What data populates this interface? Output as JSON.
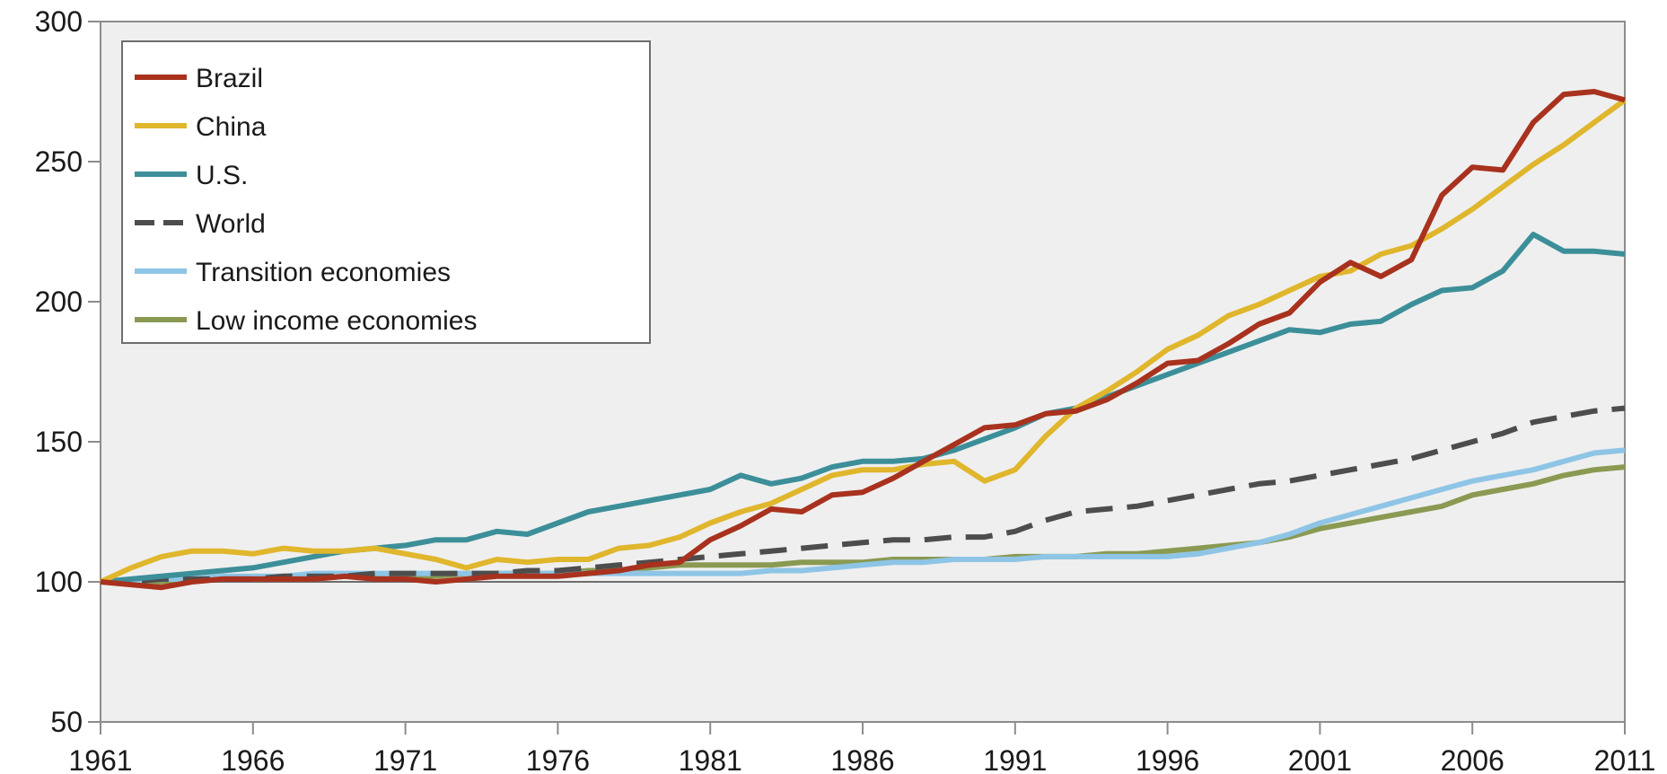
{
  "chart_data": {
    "type": "line",
    "title": "",
    "xlabel": "",
    "ylabel": "",
    "xlim": [
      1961,
      2011
    ],
    "ylim": [
      50,
      300
    ],
    "x_ticks": [
      1961,
      1966,
      1971,
      1976,
      1981,
      1986,
      1991,
      1996,
      2001,
      2006,
      2011
    ],
    "y_ticks": [
      50,
      100,
      150,
      200,
      250,
      300
    ],
    "grid": false,
    "background_color": "#efefef",
    "baseline": 100,
    "legend": {
      "position": "top-left",
      "frame": true
    },
    "x": [
      1961,
      1962,
      1963,
      1964,
      1965,
      1966,
      1967,
      1968,
      1969,
      1970,
      1971,
      1972,
      1973,
      1974,
      1975,
      1976,
      1977,
      1978,
      1979,
      1980,
      1981,
      1982,
      1983,
      1984,
      1985,
      1986,
      1987,
      1988,
      1989,
      1990,
      1991,
      1992,
      1993,
      1994,
      1995,
      1996,
      1997,
      1998,
      1999,
      2000,
      2001,
      2002,
      2003,
      2004,
      2005,
      2006,
      2007,
      2008,
      2009,
      2010,
      2011
    ],
    "series": [
      {
        "name": "Brazil",
        "color": "#a8321e",
        "dash": "solid",
        "values": [
          100,
          99,
          98,
          100,
          101,
          101,
          101,
          101,
          102,
          101,
          101,
          100,
          101,
          102,
          102,
          102,
          103,
          104,
          106,
          107,
          115,
          120,
          126,
          125,
          131,
          132,
          137,
          143,
          149,
          155,
          156,
          160,
          161,
          165,
          171,
          178,
          179,
          185,
          192,
          196,
          207,
          214,
          209,
          215,
          238,
          248,
          247,
          264,
          274,
          275,
          272
        ]
      },
      {
        "name": "China",
        "color": "#e0b62c",
        "dash": "solid",
        "values": [
          100,
          105,
          109,
          111,
          111,
          110,
          112,
          111,
          111,
          112,
          110,
          108,
          105,
          108,
          107,
          108,
          108,
          112,
          113,
          116,
          121,
          125,
          128,
          133,
          138,
          140,
          140,
          142,
          143,
          136,
          140,
          152,
          162,
          168,
          175,
          183,
          188,
          195,
          199,
          204,
          209,
          211,
          217,
          220,
          226,
          233,
          241,
          249,
          256,
          264,
          272
        ]
      },
      {
        "name": "U.S.",
        "color": "#3c8f99",
        "dash": "solid",
        "values": [
          100,
          101,
          102,
          103,
          104,
          105,
          107,
          109,
          111,
          112,
          113,
          115,
          115,
          118,
          117,
          121,
          125,
          127,
          129,
          131,
          133,
          138,
          135,
          137,
          141,
          143,
          143,
          144,
          147,
          151,
          155,
          160,
          162,
          166,
          170,
          174,
          178,
          182,
          186,
          190,
          189,
          192,
          193,
          199,
          204,
          205,
          211,
          224,
          218,
          218,
          217
        ]
      },
      {
        "name": "World",
        "color": "#4d4d4d",
        "dash": "dashed",
        "values": [
          100,
          100,
          101,
          101,
          101,
          101,
          102,
          102,
          102,
          103,
          103,
          103,
          103,
          103,
          104,
          104,
          105,
          106,
          107,
          108,
          109,
          110,
          111,
          112,
          113,
          114,
          115,
          115,
          116,
          116,
          118,
          122,
          125,
          126,
          127,
          129,
          131,
          133,
          135,
          136,
          138,
          140,
          142,
          144,
          147,
          150,
          153,
          157,
          159,
          161,
          162
        ]
      },
      {
        "name": "Transition economies",
        "color": "#8ec5e6",
        "dash": "solid",
        "values": [
          100,
          100,
          101,
          101,
          102,
          102,
          102,
          103,
          103,
          103,
          103,
          103,
          103,
          103,
          103,
          103,
          103,
          103,
          103,
          103,
          103,
          103,
          104,
          104,
          105,
          106,
          107,
          107,
          108,
          108,
          108,
          109,
          109,
          109,
          109,
          109,
          110,
          112,
          114,
          117,
          121,
          124,
          127,
          130,
          133,
          136,
          138,
          140,
          143,
          146,
          147
        ]
      },
      {
        "name": "Low income economies",
        "color": "#8a9a52",
        "dash": "solid",
        "values": [
          100,
          100,
          100,
          101,
          101,
          101,
          101,
          101,
          102,
          102,
          102,
          102,
          103,
          103,
          103,
          103,
          104,
          104,
          105,
          106,
          106,
          106,
          106,
          107,
          107,
          107,
          108,
          108,
          108,
          108,
          109,
          109,
          109,
          110,
          110,
          111,
          112,
          113,
          114,
          116,
          119,
          121,
          123,
          125,
          127,
          131,
          133,
          135,
          138,
          140,
          141
        ]
      }
    ]
  }
}
